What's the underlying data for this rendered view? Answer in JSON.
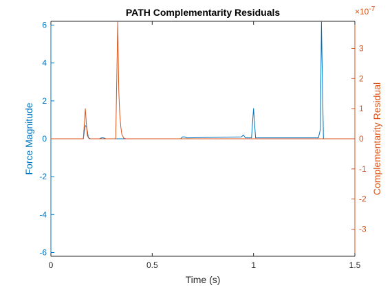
{
  "colors": {
    "left_axis": "#0072BD",
    "right_axis": "#D95319",
    "axes": "#262626",
    "background": "#ffffff"
  },
  "chart_data": {
    "type": "line",
    "title": "PATH Complementarity Residuals",
    "xlabel": "Time (s)",
    "ylabel_left": "Force Magnitude",
    "ylabel_right": "Complementarity Residual",
    "right_exponent_label": "×10",
    "right_exponent_power": "-7",
    "xlim": [
      0,
      1.5
    ],
    "ylim_left": [
      -6.2,
      6.2
    ],
    "ylim_right": [
      -3.9,
      3.9
    ],
    "x_ticks": [
      0,
      0.5,
      1,
      1.5
    ],
    "x_tick_labels": [
      "0",
      "0.5",
      "1",
      "1.5"
    ],
    "y_left_ticks": [
      -6,
      -4,
      -2,
      0,
      2,
      4,
      6
    ],
    "y_left_tick_labels": [
      "-6",
      "-4",
      "-2",
      "0",
      "2",
      "4",
      "6"
    ],
    "y_right_ticks": [
      -3,
      -2,
      -1,
      0,
      1,
      2,
      3
    ],
    "y_right_tick_labels": [
      "-3",
      "-2",
      "-1",
      "0",
      "1",
      "2",
      "3"
    ],
    "grid": false,
    "series": [
      {
        "axis": "left",
        "color": "#0072BD",
        "x": [
          0,
          0.16,
          0.165,
          0.17,
          0.175,
          0.18,
          0.185,
          0.195,
          0.24,
          0.25,
          0.26,
          0.27,
          0.3,
          0.36,
          0.64,
          0.65,
          0.66,
          0.67,
          0.68,
          0.94,
          0.95,
          0.96,
          0.98,
          0.99,
          1.0,
          1.01,
          1.02,
          1.32,
          1.33,
          1.335,
          1.34,
          1.345,
          1.36,
          1.5
        ],
        "y": [
          0,
          0,
          0.4,
          0.7,
          0.65,
          0.4,
          0.05,
          0,
          0,
          0.05,
          0.05,
          0,
          0,
          0,
          0,
          0.1,
          0.1,
          0.05,
          0.05,
          0.1,
          0.2,
          0.05,
          0.05,
          0.05,
          1.6,
          0.05,
          0.05,
          0.05,
          0.5,
          6.2,
          3.0,
          0,
          0,
          0
        ]
      },
      {
        "axis": "right",
        "color": "#D95319",
        "x": [
          0,
          0.16,
          0.165,
          0.17,
          0.175,
          0.18,
          0.19,
          0.32,
          0.325,
          0.33,
          0.335,
          0.34,
          0.345,
          0.35,
          0.36,
          0.37,
          1.37,
          1.38,
          1.5
        ],
        "y": [
          0,
          0,
          0.5,
          1.0,
          0.5,
          0.1,
          0,
          0,
          2.0,
          3.9,
          1.6,
          0.8,
          0.4,
          0.15,
          0.02,
          0,
          0,
          0,
          0
        ]
      }
    ]
  }
}
